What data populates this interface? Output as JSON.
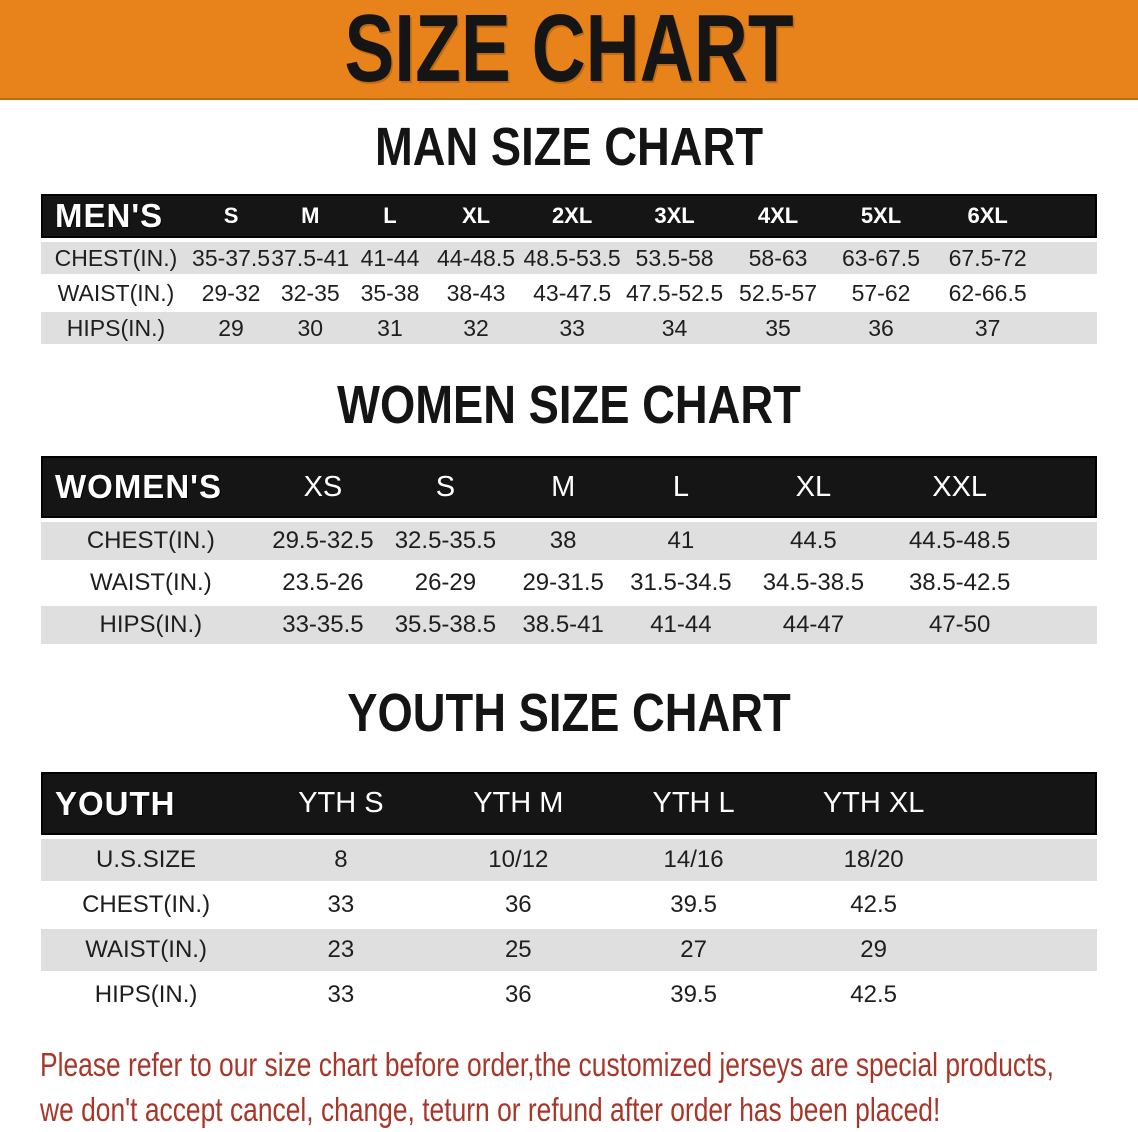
{
  "banner": {
    "title": "SIZE CHART",
    "bg_color": "#E8831C",
    "text_color": "#151515"
  },
  "colors": {
    "table_header_bg": "#151515",
    "table_row_gray": "#DFDFDF",
    "table_row_white": "#FFFFFF",
    "disclaimer_red": "#A8372A"
  },
  "sections": [
    {
      "id": "men",
      "title": "MAN SIZE CHART",
      "header_label": "MEN'S",
      "columns": [
        "S",
        "M",
        "L",
        "XL",
        "2XL",
        "3XL",
        "4XL",
        "5XL",
        "6XL"
      ],
      "rows": [
        {
          "label": "CHEST(IN.)",
          "values": [
            "35-37.5",
            "37.5-41",
            "41-44",
            "44-48.5",
            "48.5-53.5",
            "53.5-58",
            "58-63",
            "63-67.5",
            "67.5-72"
          ]
        },
        {
          "label": "WAIST(IN.)",
          "values": [
            "29-32",
            "32-35",
            "35-38",
            "38-43",
            "43-47.5",
            "47.5-52.5",
            "52.5-57",
            "57-62",
            "62-66.5"
          ]
        },
        {
          "label": "HIPS(IN.)",
          "values": [
            "29",
            "30",
            "31",
            "32",
            "33",
            "34",
            "35",
            "36",
            "37"
          ]
        }
      ]
    },
    {
      "id": "women",
      "title": "WOMEN SIZE CHART",
      "header_label": "WOMEN'S",
      "columns": [
        "XS",
        "S",
        "M",
        "L",
        "XL",
        "XXL"
      ],
      "rows": [
        {
          "label": "CHEST(IN.)",
          "values": [
            "29.5-32.5",
            "32.5-35.5",
            "38",
            "41",
            "44.5",
            "44.5-48.5"
          ]
        },
        {
          "label": "WAIST(IN.)",
          "values": [
            "23.5-26",
            "26-29",
            "29-31.5",
            "31.5-34.5",
            "34.5-38.5",
            "38.5-42.5"
          ]
        },
        {
          "label": "HIPS(IN.)",
          "values": [
            "33-35.5",
            "35.5-38.5",
            "38.5-41",
            "41-44",
            "44-47",
            "47-50"
          ]
        }
      ]
    },
    {
      "id": "youth",
      "title": "YOUTH SIZE CHART",
      "header_label": "YOUTH",
      "columns": [
        "YTH S",
        "YTH M",
        "YTH L",
        "YTH XL"
      ],
      "rows": [
        {
          "label": "U.S.SIZE",
          "values": [
            "8",
            "10/12",
            "14/16",
            "18/20"
          ]
        },
        {
          "label": "CHEST(IN.)",
          "values": [
            "33",
            "36",
            "39.5",
            "42.5"
          ]
        },
        {
          "label": "WAIST(IN.)",
          "values": [
            "23",
            "25",
            "27",
            "29"
          ]
        },
        {
          "label": "HIPS(IN.)",
          "values": [
            "33",
            "36",
            "39.5",
            "42.5"
          ]
        }
      ]
    }
  ],
  "disclaimer": {
    "line1": "Please refer to our size chart before order,the customized jerseys are special products,",
    "line2": "we don't accept cancel, change, teturn or refund after order has been placed!"
  }
}
